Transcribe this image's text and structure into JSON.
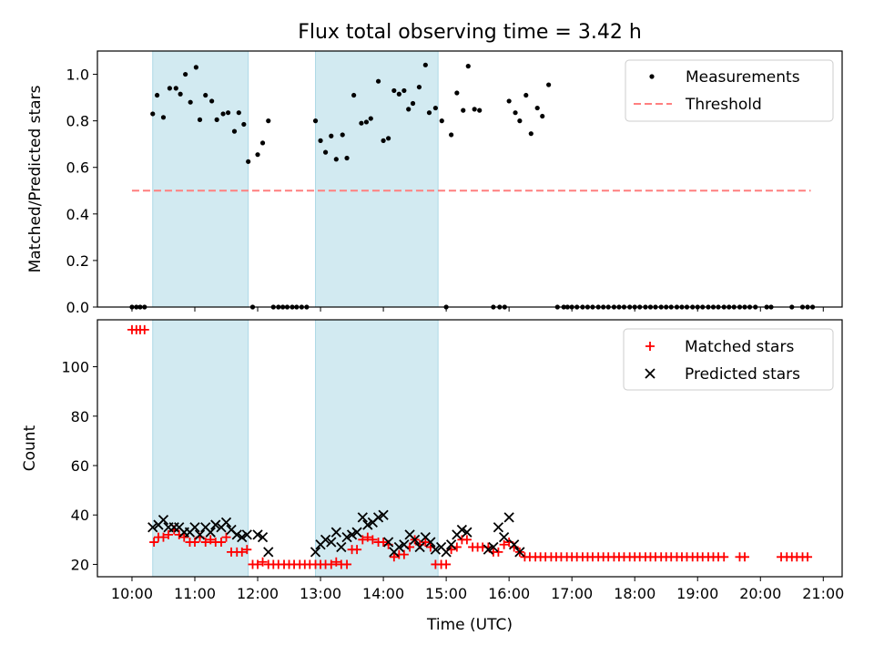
{
  "title": "Flux total observing time = 3.42 h",
  "colors": {
    "measurement": "#000000",
    "threshold": "#ff7f7f",
    "matched": "#ff0000",
    "predicted": "#000000",
    "band": "#add8e6"
  },
  "chart_data": [
    {
      "type": "scatter",
      "id": "ratio",
      "ylabel": "Matched/Predicted stars",
      "ylim": [
        0,
        1.1
      ],
      "yticks": [
        0.0,
        0.2,
        0.4,
        0.6,
        0.8,
        1.0
      ],
      "legend": {
        "position": "top-right",
        "entries": [
          "Measurements",
          "Threshold"
        ]
      },
      "threshold": {
        "value": 0.5,
        "x_start": 10.0,
        "x_end": 20.8
      },
      "measurements": [
        [
          10.0,
          0
        ],
        [
          10.07,
          0
        ],
        [
          10.13,
          0
        ],
        [
          10.2,
          0
        ],
        [
          10.33,
          0.83
        ],
        [
          10.4,
          0.91
        ],
        [
          10.5,
          0.815
        ],
        [
          10.6,
          0.94
        ],
        [
          10.7,
          0.94
        ],
        [
          10.77,
          0.915
        ],
        [
          10.85,
          1.0
        ],
        [
          10.93,
          0.88
        ],
        [
          11.02,
          1.03
        ],
        [
          11.08,
          0.805
        ],
        [
          11.17,
          0.91
        ],
        [
          11.27,
          0.885
        ],
        [
          11.35,
          0.805
        ],
        [
          11.45,
          0.83
        ],
        [
          11.53,
          0.835
        ],
        [
          11.63,
          0.755
        ],
        [
          11.7,
          0.835
        ],
        [
          11.78,
          0.785
        ],
        [
          11.85,
          0.625
        ],
        [
          11.92,
          0
        ],
        [
          12.0,
          0.655
        ],
        [
          12.08,
          0.705
        ],
        [
          12.17,
          0.8
        ],
        [
          12.25,
          0
        ],
        [
          12.33,
          0
        ],
        [
          12.4,
          0
        ],
        [
          12.47,
          0
        ],
        [
          12.55,
          0
        ],
        [
          12.62,
          0
        ],
        [
          12.7,
          0
        ],
        [
          12.78,
          0
        ],
        [
          12.92,
          0.8
        ],
        [
          13.0,
          0.715
        ],
        [
          13.08,
          0.665
        ],
        [
          13.17,
          0.735
        ],
        [
          13.25,
          0.635
        ],
        [
          13.35,
          0.74
        ],
        [
          13.42,
          0.64
        ],
        [
          13.53,
          0.91
        ],
        [
          13.65,
          0.79
        ],
        [
          13.73,
          0.795
        ],
        [
          13.8,
          0.81
        ],
        [
          13.92,
          0.97
        ],
        [
          14.0,
          0.715
        ],
        [
          14.08,
          0.725
        ],
        [
          14.17,
          0.93
        ],
        [
          14.25,
          0.915
        ],
        [
          14.33,
          0.93
        ],
        [
          14.4,
          0.85
        ],
        [
          14.47,
          0.875
        ],
        [
          14.57,
          0.945
        ],
        [
          14.67,
          1.04
        ],
        [
          14.73,
          0.835
        ],
        [
          14.83,
          0.855
        ],
        [
          14.93,
          0.8
        ],
        [
          15.0,
          0
        ],
        [
          15.08,
          0.74
        ],
        [
          15.17,
          0.92
        ],
        [
          15.27,
          0.845
        ],
        [
          15.35,
          1.035
        ],
        [
          15.45,
          0.85
        ],
        [
          15.53,
          0.845
        ],
        [
          15.75,
          0
        ],
        [
          15.85,
          0
        ],
        [
          15.93,
          0
        ],
        [
          16.0,
          0.885
        ],
        [
          16.1,
          0.835
        ],
        [
          16.17,
          0.8
        ],
        [
          16.27,
          0.91
        ],
        [
          16.35,
          0.745
        ],
        [
          16.45,
          0.855
        ],
        [
          16.53,
          0.82
        ],
        [
          16.63,
          0.955
        ],
        [
          16.77,
          0
        ],
        [
          16.87,
          0
        ],
        [
          16.93,
          0
        ],
        [
          17.0,
          0
        ],
        [
          17.08,
          0
        ],
        [
          17.17,
          0
        ],
        [
          17.25,
          0
        ],
        [
          17.33,
          0
        ],
        [
          17.42,
          0
        ],
        [
          17.5,
          0
        ],
        [
          17.58,
          0
        ],
        [
          17.67,
          0
        ],
        [
          17.75,
          0
        ],
        [
          17.83,
          0
        ],
        [
          17.92,
          0
        ],
        [
          18.0,
          0
        ],
        [
          18.08,
          0
        ],
        [
          18.17,
          0
        ],
        [
          18.25,
          0
        ],
        [
          18.33,
          0
        ],
        [
          18.42,
          0
        ],
        [
          18.5,
          0
        ],
        [
          18.58,
          0
        ],
        [
          18.67,
          0
        ],
        [
          18.75,
          0
        ],
        [
          18.83,
          0
        ],
        [
          18.92,
          0
        ],
        [
          19.0,
          0
        ],
        [
          19.08,
          0
        ],
        [
          19.17,
          0
        ],
        [
          19.25,
          0
        ],
        [
          19.33,
          0
        ],
        [
          19.42,
          0
        ],
        [
          19.5,
          0
        ],
        [
          19.58,
          0
        ],
        [
          19.67,
          0
        ],
        [
          19.75,
          0
        ],
        [
          19.83,
          0
        ],
        [
          19.92,
          0
        ],
        [
          20.1,
          0
        ],
        [
          20.17,
          0
        ],
        [
          20.5,
          0
        ],
        [
          20.67,
          0
        ],
        [
          20.75,
          0
        ],
        [
          20.83,
          0
        ]
      ]
    },
    {
      "type": "scatter",
      "id": "counts",
      "ylabel": "Count",
      "xlabel": "Time (UTC)",
      "ylim": [
        15,
        119
      ],
      "yticks": [
        20,
        40,
        60,
        80,
        100
      ],
      "legend": {
        "position": "top-right",
        "entries": [
          "Matched stars",
          "Predicted stars"
        ]
      },
      "matched": [
        [
          10.0,
          115
        ],
        [
          10.07,
          115
        ],
        [
          10.13,
          115
        ],
        [
          10.2,
          115
        ],
        [
          10.35,
          29
        ],
        [
          10.42,
          31
        ],
        [
          10.5,
          31
        ],
        [
          10.58,
          32
        ],
        [
          10.67,
          34
        ],
        [
          10.75,
          32
        ],
        [
          10.83,
          31
        ],
        [
          10.92,
          29
        ],
        [
          11.0,
          29
        ],
        [
          11.08,
          31
        ],
        [
          11.17,
          29
        ],
        [
          11.25,
          30
        ],
        [
          11.33,
          29
        ],
        [
          11.42,
          29
        ],
        [
          11.5,
          31
        ],
        [
          11.58,
          25
        ],
        [
          11.67,
          25
        ],
        [
          11.75,
          25
        ],
        [
          11.83,
          26
        ],
        [
          11.92,
          20
        ],
        [
          12.0,
          20
        ],
        [
          12.08,
          21
        ],
        [
          12.17,
          20
        ],
        [
          12.25,
          20
        ],
        [
          12.33,
          20
        ],
        [
          12.42,
          20
        ],
        [
          12.5,
          20
        ],
        [
          12.58,
          20
        ],
        [
          12.67,
          20
        ],
        [
          12.75,
          20
        ],
        [
          12.83,
          20
        ],
        [
          12.92,
          20
        ],
        [
          13.0,
          20
        ],
        [
          13.08,
          20
        ],
        [
          13.17,
          20
        ],
        [
          13.25,
          21
        ],
        [
          13.33,
          20
        ],
        [
          13.42,
          20
        ],
        [
          13.5,
          26
        ],
        [
          13.58,
          26
        ],
        [
          13.67,
          30
        ],
        [
          13.75,
          31
        ],
        [
          13.83,
          30
        ],
        [
          13.92,
          29
        ],
        [
          14.0,
          29
        ],
        [
          14.08,
          28
        ],
        [
          14.17,
          23
        ],
        [
          14.25,
          24
        ],
        [
          14.33,
          24
        ],
        [
          14.42,
          27
        ],
        [
          14.5,
          30
        ],
        [
          14.58,
          28
        ],
        [
          14.67,
          29
        ],
        [
          14.75,
          27
        ],
        [
          14.83,
          20
        ],
        [
          14.92,
          20
        ],
        [
          15.0,
          20
        ],
        [
          15.08,
          26
        ],
        [
          15.17,
          27
        ],
        [
          15.25,
          30
        ],
        [
          15.33,
          30
        ],
        [
          15.42,
          27
        ],
        [
          15.5,
          27
        ],
        [
          15.58,
          27
        ],
        [
          15.67,
          27
        ],
        [
          15.75,
          25
        ],
        [
          15.83,
          25
        ],
        [
          15.92,
          28
        ],
        [
          16.0,
          29
        ],
        [
          16.08,
          27
        ],
        [
          16.17,
          25
        ],
        [
          16.25,
          23
        ],
        [
          16.33,
          23
        ],
        [
          16.42,
          23
        ],
        [
          16.5,
          23
        ],
        [
          16.58,
          23
        ],
        [
          16.67,
          23
        ],
        [
          16.75,
          23
        ],
        [
          16.83,
          23
        ],
        [
          16.92,
          23
        ],
        [
          17.0,
          23
        ],
        [
          17.08,
          23
        ],
        [
          17.17,
          23
        ],
        [
          17.25,
          23
        ],
        [
          17.33,
          23
        ],
        [
          17.42,
          23
        ],
        [
          17.5,
          23
        ],
        [
          17.58,
          23
        ],
        [
          17.67,
          23
        ],
        [
          17.75,
          23
        ],
        [
          17.83,
          23
        ],
        [
          17.92,
          23
        ],
        [
          18.0,
          23
        ],
        [
          18.08,
          23
        ],
        [
          18.17,
          23
        ],
        [
          18.25,
          23
        ],
        [
          18.33,
          23
        ],
        [
          18.42,
          23
        ],
        [
          18.5,
          23
        ],
        [
          18.58,
          23
        ],
        [
          18.67,
          23
        ],
        [
          18.75,
          23
        ],
        [
          18.83,
          23
        ],
        [
          18.92,
          23
        ],
        [
          19.0,
          23
        ],
        [
          19.08,
          23
        ],
        [
          19.17,
          23
        ],
        [
          19.25,
          23
        ],
        [
          19.33,
          23
        ],
        [
          19.42,
          23
        ],
        [
          19.67,
          23
        ],
        [
          19.75,
          23
        ],
        [
          20.33,
          23
        ],
        [
          20.42,
          23
        ],
        [
          20.5,
          23
        ],
        [
          20.58,
          23
        ],
        [
          20.67,
          23
        ],
        [
          20.75,
          23
        ]
      ],
      "predicted": [
        [
          10.33,
          35
        ],
        [
          10.42,
          36
        ],
        [
          10.5,
          38
        ],
        [
          10.58,
          35
        ],
        [
          10.67,
          35
        ],
        [
          10.75,
          35
        ],
        [
          10.83,
          33
        ],
        [
          10.92,
          33
        ],
        [
          11.0,
          35
        ],
        [
          11.08,
          32
        ],
        [
          11.17,
          35
        ],
        [
          11.25,
          33
        ],
        [
          11.33,
          36
        ],
        [
          11.42,
          35
        ],
        [
          11.5,
          37
        ],
        [
          11.58,
          34
        ],
        [
          11.67,
          32
        ],
        [
          11.75,
          31
        ],
        [
          11.83,
          32
        ],
        [
          12.0,
          32
        ],
        [
          12.08,
          31
        ],
        [
          12.17,
          25
        ],
        [
          12.92,
          25
        ],
        [
          13.0,
          28
        ],
        [
          13.08,
          30
        ],
        [
          13.17,
          29
        ],
        [
          13.25,
          33
        ],
        [
          13.33,
          27
        ],
        [
          13.42,
          31
        ],
        [
          13.5,
          32
        ],
        [
          13.58,
          33
        ],
        [
          13.67,
          39
        ],
        [
          13.75,
          36
        ],
        [
          13.83,
          37
        ],
        [
          13.92,
          39
        ],
        [
          14.0,
          40
        ],
        [
          14.08,
          29
        ],
        [
          14.17,
          25
        ],
        [
          14.25,
          27
        ],
        [
          14.33,
          28
        ],
        [
          14.42,
          32
        ],
        [
          14.5,
          30
        ],
        [
          14.58,
          27
        ],
        [
          14.67,
          31
        ],
        [
          14.75,
          29
        ],
        [
          14.83,
          26
        ],
        [
          14.92,
          27
        ],
        [
          15.0,
          25
        ],
        [
          15.08,
          28
        ],
        [
          15.17,
          32
        ],
        [
          15.25,
          34
        ],
        [
          15.33,
          33
        ],
        [
          15.67,
          26
        ],
        [
          15.75,
          27
        ],
        [
          15.83,
          35
        ],
        [
          15.92,
          31
        ],
        [
          16.0,
          39
        ],
        [
          16.08,
          28
        ],
        [
          16.17,
          25
        ]
      ]
    }
  ],
  "x_axis": {
    "xlim": [
      9.45,
      21.3
    ],
    "ticks": [
      10,
      11,
      12,
      13,
      14,
      15,
      16,
      17,
      18,
      19,
      20,
      21
    ],
    "tick_labels": [
      "10:00",
      "11:00",
      "12:00",
      "13:00",
      "14:00",
      "15:00",
      "16:00",
      "17:00",
      "18:00",
      "19:00",
      "20:00",
      "21:00"
    ]
  },
  "shaded_intervals": [
    [
      10.33,
      11.85
    ],
    [
      12.92,
      14.87
    ]
  ]
}
